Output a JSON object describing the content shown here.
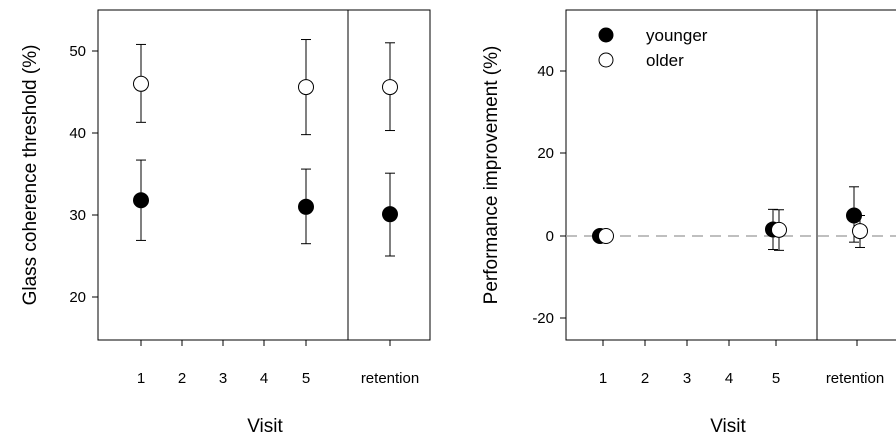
{
  "chart_data": [
    {
      "type": "scatter",
      "xlabel": "Visit",
      "ylabel": "Glass coherence threshold (%)",
      "categories": [
        "1",
        "2",
        "3",
        "4",
        "5",
        "retention"
      ],
      "ylim": [
        14,
        56
      ],
      "yticks": [
        "20",
        "30",
        "40",
        "50"
      ],
      "grid": false,
      "series": [
        {
          "marker": "filled-circle",
          "points": [
            {
              "x": "1",
              "y": 31.8,
              "err_low": 26.9,
              "err_high": 36.7
            },
            {
              "x": "5",
              "y": 31.0,
              "err_low": 26.5,
              "err_high": 35.6
            },
            {
              "x": "retention",
              "y": 30.1,
              "err_low": 25.0,
              "err_high": 35.1
            }
          ]
        },
        {
          "marker": "open-circle",
          "points": [
            {
              "x": "1",
              "y": 46.0,
              "err_low": 41.3,
              "err_high": 50.8
            },
            {
              "x": "5",
              "y": 45.6,
              "err_low": 39.8,
              "err_high": 51.4
            },
            {
              "x": "retention",
              "y": 45.6,
              "err_low": 40.3,
              "err_high": 51.0
            }
          ]
        }
      ]
    },
    {
      "type": "scatter",
      "xlabel": "Visit",
      "ylabel": "Performance improvement (%)",
      "categories": [
        "1",
        "2",
        "3",
        "4",
        "5",
        "retention"
      ],
      "ylim": [
        -25,
        56
      ],
      "yticks": [
        "-20",
        "0",
        "20",
        "40"
      ],
      "grid": false,
      "reference_line_y": 0,
      "legend_position": "top-left",
      "series": [
        {
          "name": "younger",
          "marker": "filled-circle",
          "points": [
            {
              "x": "1",
              "y": 0.0,
              "err_low": 0.0,
              "err_high": 0.0
            },
            {
              "x": "5",
              "y": 1.6,
              "err_low": -3.3,
              "err_high": 6.5
            },
            {
              "x": "retention",
              "y": 5.0,
              "err_low": -1.5,
              "err_high": 12.0
            }
          ]
        },
        {
          "name": "older",
          "marker": "open-circle",
          "points": [
            {
              "x": "1",
              "y": 0.0,
              "err_low": 0.0,
              "err_high": 0.0
            },
            {
              "x": "5",
              "y": 1.5,
              "err_low": -3.5,
              "err_high": 6.4
            },
            {
              "x": "retention",
              "y": 1.2,
              "err_low": -2.8,
              "err_high": 5.0
            }
          ]
        }
      ]
    }
  ]
}
